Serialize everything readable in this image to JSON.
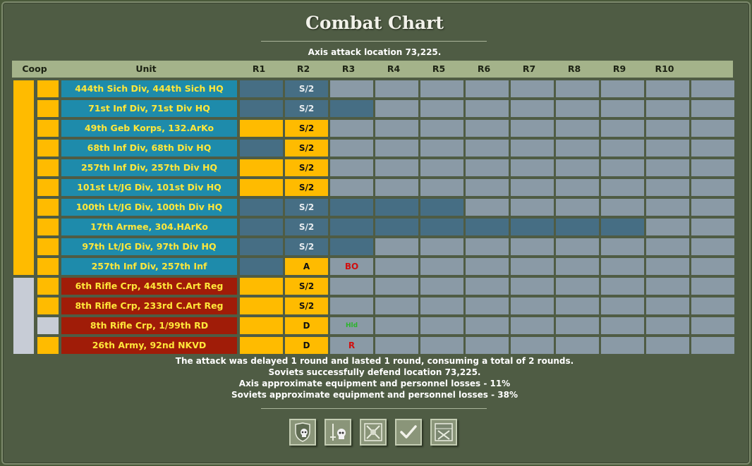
{
  "title": "Combat Chart",
  "subtitle": "Axis attack location 73,225.",
  "headers": {
    "coop": "Coop",
    "unit": "Unit",
    "rounds": [
      "R1",
      "R2",
      "R3",
      "R4",
      "R5",
      "R6",
      "R7",
      "R8",
      "R9",
      "R10"
    ]
  },
  "rows": [
    {
      "unit": "444th Sich Div, 444th Sich HQ",
      "side": "axis",
      "coop": "yellow",
      "r1": "dark",
      "r2": "S/2",
      "r2bg": "dark",
      "r3": "",
      "r3bg": "empty",
      "dark_until": 1
    },
    {
      "unit": "71st Inf Div, 71st Div HQ",
      "side": "axis",
      "coop": "yellow",
      "r1": "dark",
      "r2": "S/2",
      "r2bg": "dark",
      "r3": "",
      "r3bg": "dark",
      "dark_until": 2
    },
    {
      "unit": "49th Geb Korps, 132.ArKo",
      "side": "axis",
      "coop": "yellow",
      "r1": "yellow",
      "r2": "S/2",
      "r2bg": "yellow",
      "r3": "",
      "r3bg": "empty",
      "dark_until": 1
    },
    {
      "unit": "68th Inf Div, 68th Div HQ",
      "side": "axis",
      "coop": "yellow",
      "r1": "dark",
      "r2": "S/2",
      "r2bg": "yellow",
      "r3": "",
      "r3bg": "empty",
      "dark_until": 1
    },
    {
      "unit": "257th Inf Div, 257th Div HQ",
      "side": "axis",
      "coop": "yellow",
      "r1": "yellow",
      "r2": "S/2",
      "r2bg": "yellow",
      "r3": "",
      "r3bg": "empty",
      "dark_until": 1
    },
    {
      "unit": "101st Lt/JG Div, 101st Div HQ",
      "side": "axis",
      "coop": "yellow",
      "r1": "yellow",
      "r2": "S/2",
      "r2bg": "yellow",
      "r3": "",
      "r3bg": "empty",
      "dark_until": 1
    },
    {
      "unit": "100th Lt/JG Div, 100th Div HQ",
      "side": "axis",
      "coop": "yellow",
      "r1": "dark",
      "r2": "S/2",
      "r2bg": "dark",
      "r3": "",
      "r3bg": "dark",
      "dark_until": 3
    },
    {
      "unit": "17th Armee, 304.HArKo",
      "side": "axis",
      "coop": "yellow",
      "r1": "dark",
      "r2": "S/2",
      "r2bg": "dark",
      "r3": "",
      "r3bg": "dark",
      "dark_until": 7
    },
    {
      "unit": "97th Lt/JG Div, 97th Div HQ",
      "side": "axis",
      "coop": "yellow",
      "r1": "dark",
      "r2": "S/2",
      "r2bg": "dark",
      "r3": "",
      "r3bg": "dark",
      "dark_until": 2
    },
    {
      "unit": "257th Inf Div, 257th Inf",
      "side": "axis",
      "coop": "yellow",
      "r1": "dark",
      "r2": "A",
      "r2bg": "yellow",
      "r3": "BO",
      "r3bg": "empty",
      "r3color": "red",
      "dark_until": 1
    },
    {
      "unit": "6th Rifle Crp, 445th C.Art Reg",
      "side": "soviet",
      "coop": "yellow",
      "r1": "yellow",
      "r2": "S/2",
      "r2bg": "yellow",
      "r3": "",
      "r3bg": "empty",
      "dark_until": 1
    },
    {
      "unit": "8th Rifle Crp, 233rd C.Art Reg",
      "side": "soviet",
      "coop": "yellow",
      "r1": "yellow",
      "r2": "S/2",
      "r2bg": "yellow",
      "r3": "",
      "r3bg": "empty",
      "dark_until": 1
    },
    {
      "unit": "8th Rifle Crp, 1/99th RD",
      "side": "soviet",
      "coop": "white",
      "r1": "yellow",
      "r2": "D",
      "r2bg": "yellow",
      "r3": "Hld",
      "r3bg": "empty",
      "r3color": "green",
      "dark_until": 1
    },
    {
      "unit": "26th Army, 92nd NKVD",
      "side": "soviet",
      "coop": "yellow",
      "r1": "yellow",
      "r2": "D",
      "r2bg": "yellow",
      "r3": "R",
      "r3bg": "empty",
      "r3color": "red",
      "dark_until": 1
    }
  ],
  "summary": [
    "The attack was delayed  1  round and lasted  1  round, consuming a total of  2  rounds.",
    "Soviets successfully defend location 73,225.",
    "Axis approximate equipment and personnel losses - 11%",
    "Soviets approximate equipment and personnel losses - 38%"
  ],
  "buttons": [
    {
      "name": "defender-losses-button",
      "icon": "shield-skull-icon"
    },
    {
      "name": "attacker-losses-button",
      "icon": "sword-skull-icon"
    },
    {
      "name": "combat-details-button",
      "icon": "crossed-swords-icon"
    },
    {
      "name": "ok-button",
      "icon": "checkmark-icon"
    },
    {
      "name": "battle-map-button",
      "icon": "map-swords-icon"
    }
  ],
  "colors": {
    "axis_unit": "#1e8bab",
    "soviet_unit": "#a01c08",
    "accent": "#ffbb00",
    "empty": "#8a9aa6",
    "dark": "#466e84"
  }
}
